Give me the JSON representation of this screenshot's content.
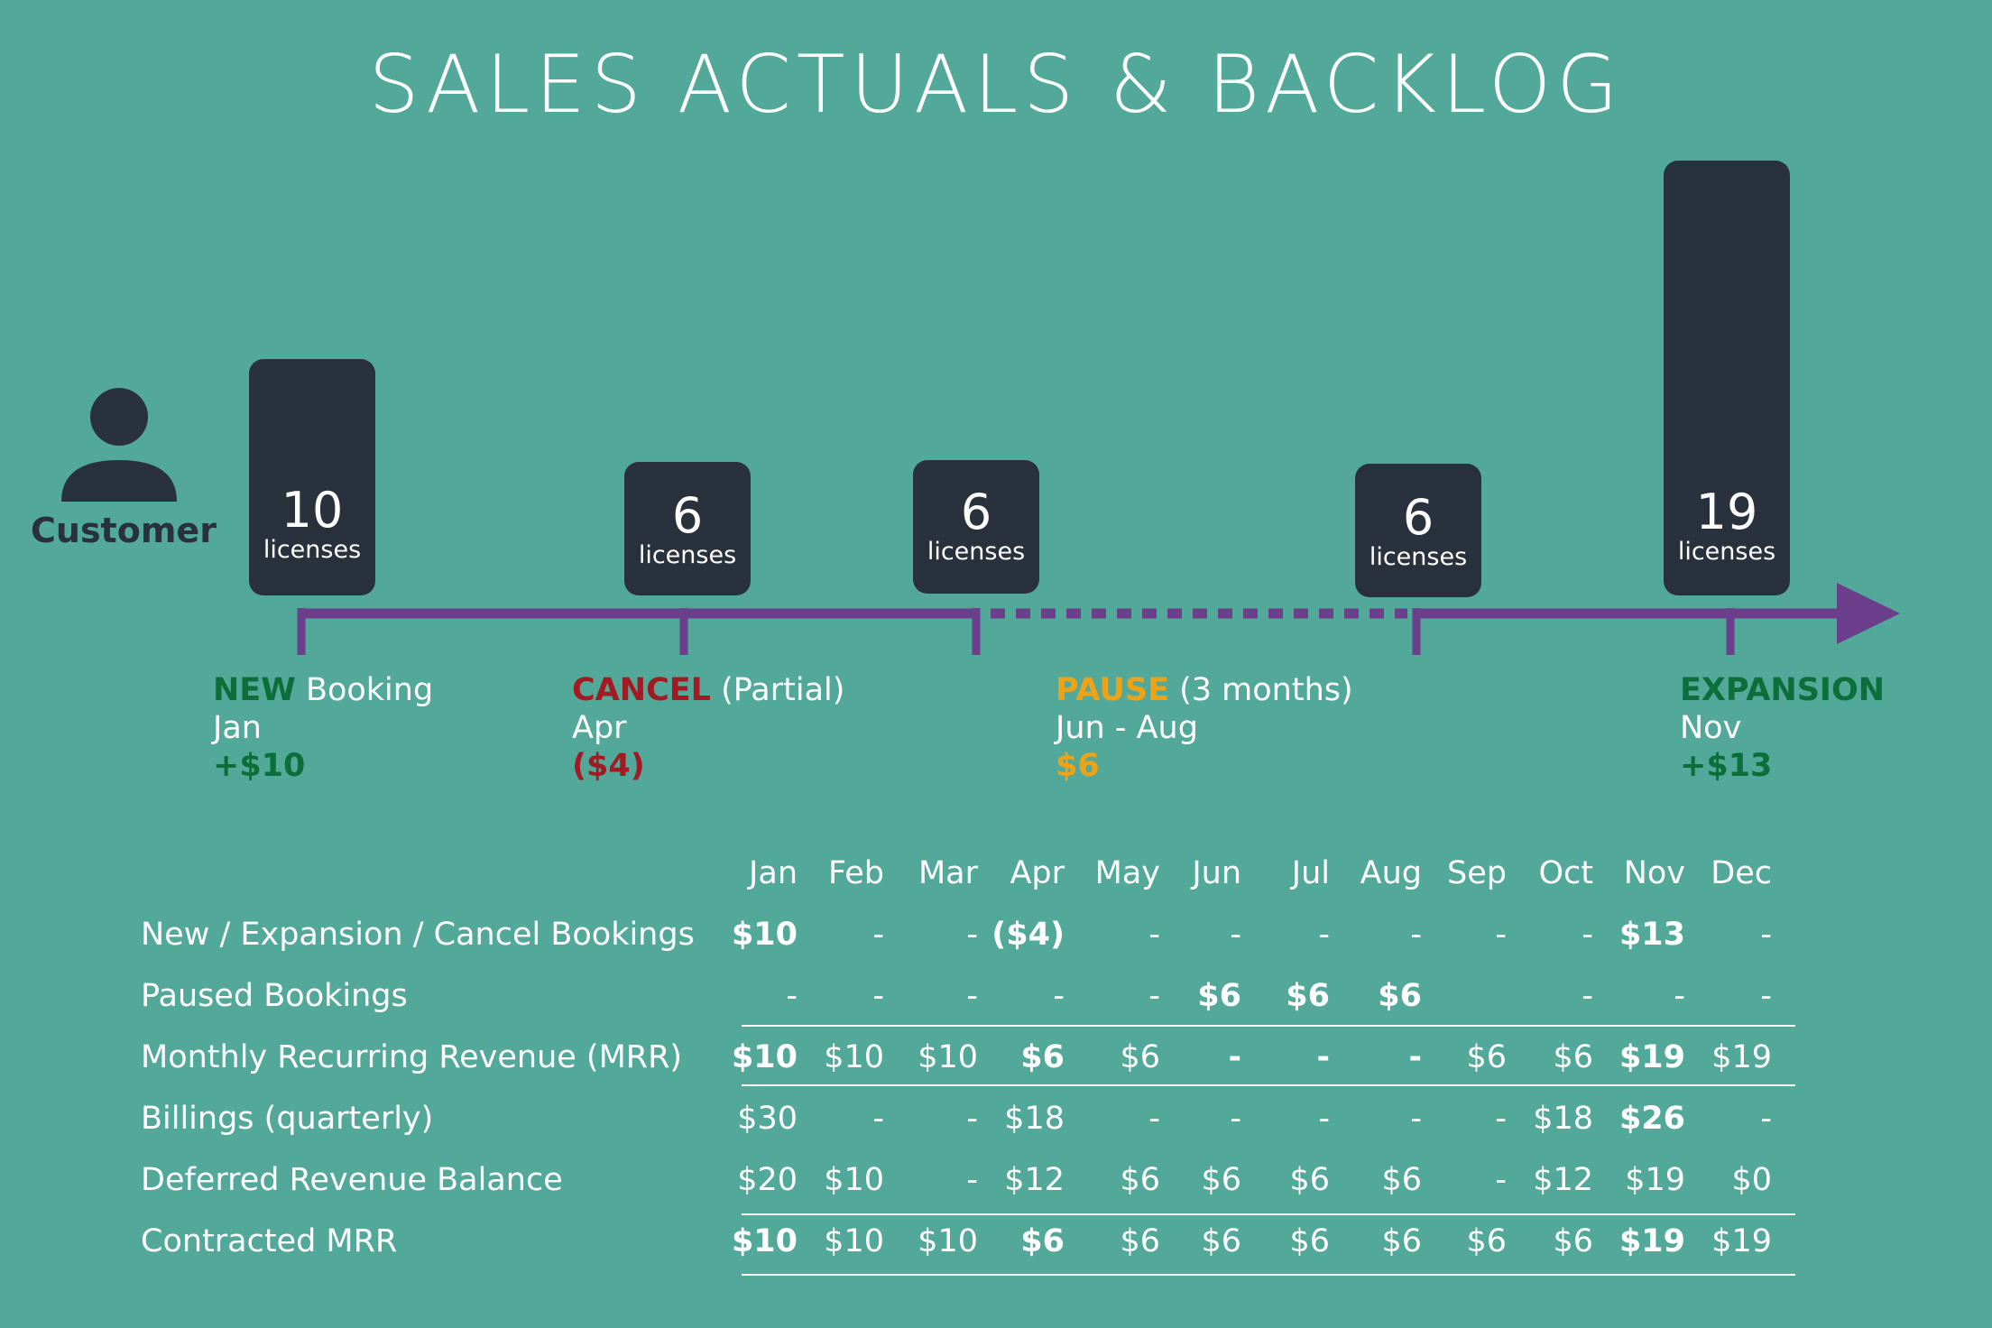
{
  "title": "SALES ACTUALS & BACKLOG",
  "customer_label": "Customer",
  "colors": {
    "background": "#52a99a",
    "box": "#29313d",
    "timeline": "#6b3f8c",
    "green": "#0e6e3a",
    "red": "#a31a22",
    "orange": "#f0a215",
    "dark_orange": "#c5450d"
  },
  "boxes": [
    {
      "num": "10",
      "unit": "licenses"
    },
    {
      "num": "6",
      "unit": "licenses"
    },
    {
      "num": "6",
      "unit": "licenses"
    },
    {
      "num": "6",
      "unit": "licenses"
    },
    {
      "num": "19",
      "unit": "licenses"
    }
  ],
  "events": [
    {
      "kw": "NEW",
      "rest": " Booking",
      "month": "Jan",
      "amount": "+$10"
    },
    {
      "kw": "CANCEL",
      "rest": " (Partial)",
      "month": "Apr",
      "amount": "($4)"
    },
    {
      "kw": "PAUSE",
      "rest": " (3 months)",
      "month": "Jun - Aug",
      "amount": "$6"
    },
    {
      "kw": "EXPANSION",
      "rest": "",
      "month": "Nov",
      "amount": "+$13"
    }
  ],
  "table": {
    "months": [
      "Jan",
      "Feb",
      "Mar",
      "Apr",
      "May",
      "Jun",
      "Jul",
      "Aug",
      "Sep",
      "Oct",
      "Nov",
      "Dec"
    ],
    "rows": [
      {
        "label": "New / Expansion / Cancel Bookings",
        "cells": [
          "$10",
          "-",
          "-",
          "($4)",
          "-",
          "-",
          "-",
          "-",
          "-",
          "-",
          "$13",
          "-"
        ]
      },
      {
        "label": "Paused Bookings",
        "cells": [
          "-",
          "-",
          "-",
          "-",
          "-",
          "$6",
          "$6",
          "$6",
          "",
          "-",
          "-",
          "-"
        ]
      },
      {
        "label": "Monthly Recurring Revenue (MRR)",
        "cells": [
          "$10",
          "$10",
          "$10",
          "$6",
          "$6",
          "-",
          "-",
          "-",
          "$6",
          "$6",
          "$19",
          "$19"
        ]
      },
      {
        "label": "Billings (quarterly)",
        "cells": [
          "$30",
          "-",
          "-",
          "$18",
          "-",
          "-",
          "-",
          "-",
          "-",
          "$18",
          "$26",
          "-"
        ]
      },
      {
        "label": "Deferred Revenue Balance",
        "cells": [
          "$20",
          "$10",
          "-",
          "$12",
          "$6",
          "$6",
          "$6",
          "$6",
          "-",
          "$12",
          "$19",
          "$0"
        ]
      },
      {
        "label": "Contracted MRR",
        "cells": [
          "$10",
          "$10",
          "$10",
          "$6",
          "$6",
          "$6",
          "$6",
          "$6",
          "$6",
          "$6",
          "$19",
          "$19"
        ]
      }
    ]
  }
}
